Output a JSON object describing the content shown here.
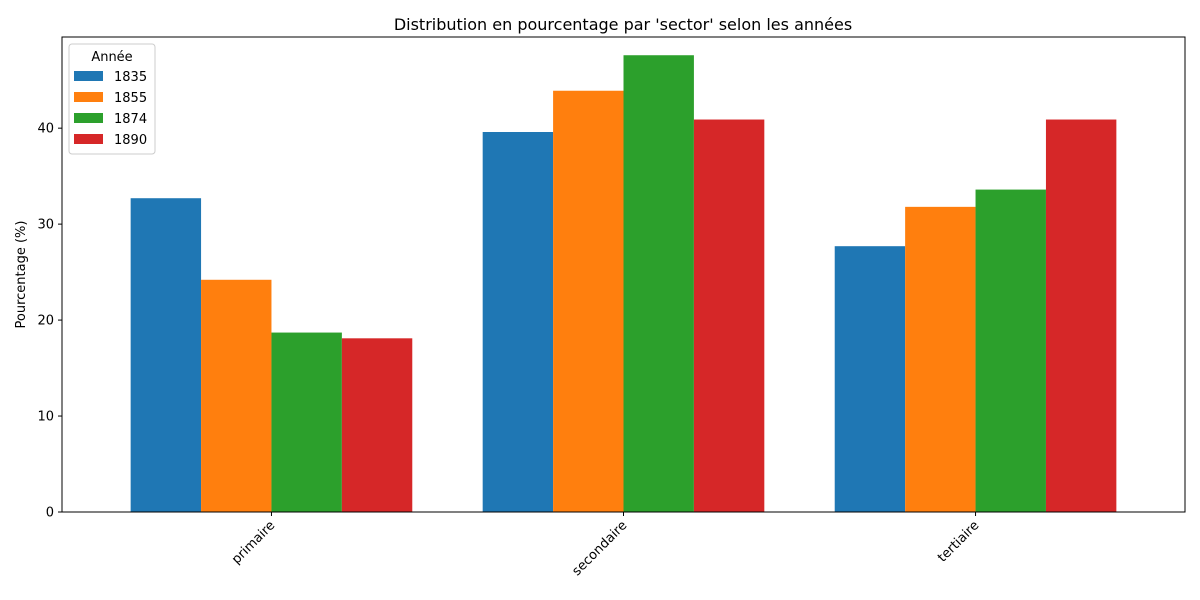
{
  "chart_data": {
    "type": "bar",
    "title": "Distribution en pourcentage par 'sector' selon les années",
    "xlabel": "",
    "ylabel": "Pourcentage (%)",
    "categories": [
      "primaire",
      "secondaire",
      "tertiaire"
    ],
    "series": [
      {
        "name": "1835",
        "color": "#1f77b4",
        "values": [
          32.7,
          39.6,
          27.7
        ]
      },
      {
        "name": "1855",
        "color": "#ff7f0e",
        "values": [
          24.2,
          43.9,
          31.8
        ]
      },
      {
        "name": "1874",
        "color": "#2ca02c",
        "values": [
          18.7,
          47.6,
          33.6
        ]
      },
      {
        "name": "1890",
        "color": "#d62728",
        "values": [
          18.1,
          40.9,
          40.9
        ]
      }
    ],
    "ylim": [
      0,
      49.5
    ],
    "yticks": [
      0,
      10,
      20,
      30,
      40
    ],
    "legend": {
      "title": "Année",
      "position": "top-left"
    },
    "grid": false
  }
}
